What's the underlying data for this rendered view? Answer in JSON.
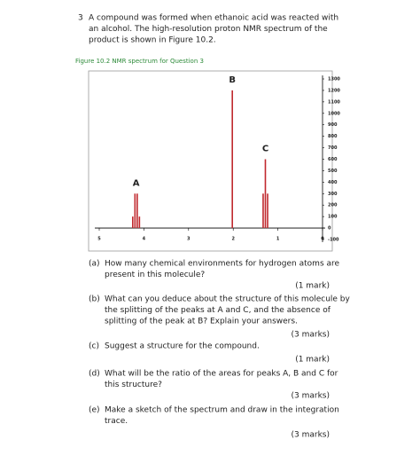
{
  "question": {
    "number": "3",
    "lines": [
      "A compound was formed when ethanoic acid was reacted with",
      "an alcohol. The high-resolution proton NMR spectrum of the",
      "product is shown in Figure 10.2."
    ]
  },
  "figure_caption": "Figure 10.2 NMR spectrum for Question 3",
  "chart_data": {
    "type": "spectrum",
    "color": "#c0282d",
    "xlim": [
      5,
      0
    ],
    "xticks": [
      5,
      4,
      3,
      2,
      1,
      0
    ],
    "ylim": [
      -100,
      1300
    ],
    "yticks": [
      1300,
      1200,
      1100,
      1000,
      900,
      800,
      700,
      600,
      500,
      400,
      300,
      200,
      100,
      0,
      -100
    ],
    "series": [
      {
        "name": "A",
        "x": [
          4.25,
          4.2,
          4.15,
          4.1
        ],
        "values": [
          100,
          300,
          300,
          100
        ]
      },
      {
        "name": "B",
        "x": [
          2.02
        ],
        "values": [
          1200
        ]
      },
      {
        "name": "C",
        "x": [
          1.33,
          1.28,
          1.23
        ],
        "values": [
          300,
          600,
          300
        ]
      }
    ]
  },
  "parts": [
    {
      "label": "(a)",
      "lines": [
        "How many chemical environments for hydrogen atoms are",
        "present in this molecule?"
      ],
      "marks": "(1 mark)"
    },
    {
      "label": "(b)",
      "lines": [
        "What can you deduce about the structure of this molecule by",
        "the splitting of the peaks at A and C, and the absence of",
        "splitting of the peak at B? Explain your answers."
      ],
      "marks": "(3 marks)"
    },
    {
      "label": "(c)",
      "lines": [
        "Suggest a structure for the compound."
      ],
      "marks": "(1 mark)"
    },
    {
      "label": "(d)",
      "lines": [
        "What will be the ratio of the areas for peaks A, B and C for",
        "this structure?"
      ],
      "marks": "(3 marks)"
    },
    {
      "label": "(e)",
      "lines": [
        "Make a sketch of the spectrum and draw in the integration",
        "trace."
      ],
      "marks": "(3 marks)"
    }
  ]
}
